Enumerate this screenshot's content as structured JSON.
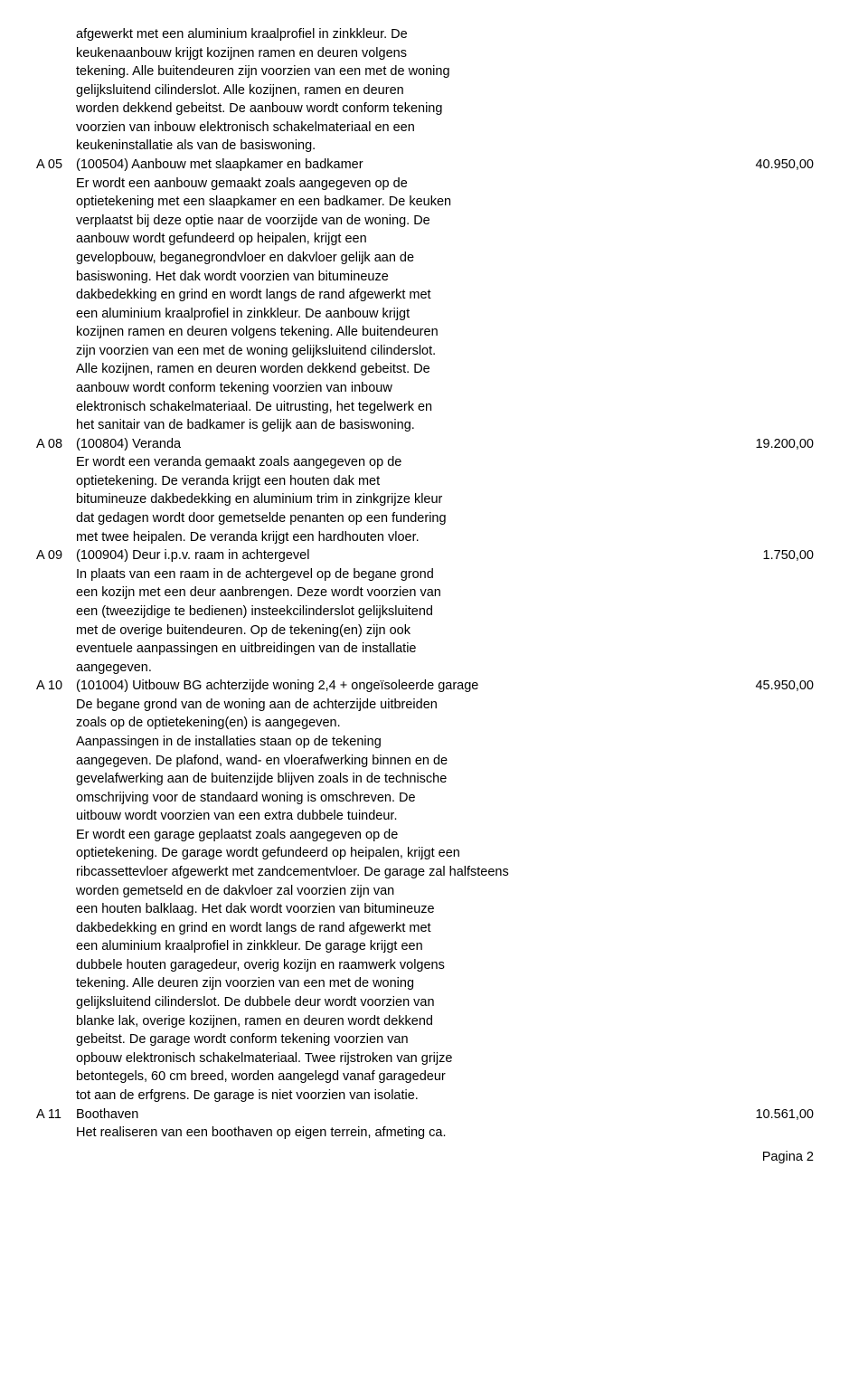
{
  "continuation": {
    "lines": [
      "afgewerkt met een aluminium kraalprofiel in zinkkleur. De",
      "keukenaanbouw krijgt kozijnen ramen en deuren volgens",
      "tekening. Alle buitendeuren zijn voorzien van een met de woning",
      "gelijksluitend cilinderslot. Alle kozijnen, ramen en deuren",
      "worden dekkend gebeitst. De aanbouw wordt conform tekening",
      "voorzien van inbouw elektronisch schakelmateriaal en een",
      "keukeninstallatie als van de basiswoning."
    ]
  },
  "entries": [
    {
      "code": "A 05",
      "title": "(100504) Aanbouw met slaapkamer en badkamer",
      "price": "40.950,00",
      "desc": [
        "Er wordt een aanbouw gemaakt zoals aangegeven op de",
        "optietekening met een slaapkamer en een badkamer. De keuken",
        "verplaatst bij deze optie naar de voorzijde van de woning. De",
        "aanbouw wordt gefundeerd op heipalen, krijgt een",
        "gevelopbouw, beganegrondvloer en dakvloer gelijk aan de",
        "basiswoning. Het dak wordt voorzien van bitumineuze",
        "dakbedekking en grind en wordt langs de rand afgewerkt met",
        "een aluminium kraalprofiel in zinkkleur. De aanbouw krijgt",
        "kozijnen ramen en deuren volgens tekening. Alle buitendeuren",
        "zijn voorzien van een met de woning gelijksluitend cilinderslot.",
        "Alle kozijnen, ramen en deuren worden dekkend gebeitst. De",
        "aanbouw wordt conform tekening voorzien van inbouw",
        "elektronisch schakelmateriaal. De uitrusting, het tegelwerk en",
        "het sanitair van de badkamer is gelijk aan de basiswoning."
      ]
    },
    {
      "code": "A 08",
      "title": "(100804) Veranda",
      "price": "19.200,00",
      "desc": [
        "Er wordt een veranda gemaakt zoals aangegeven op de",
        "optietekening. De veranda krijgt een houten dak met",
        "bitumineuze dakbedekking en aluminium trim in zinkgrijze kleur",
        "dat gedagen wordt door gemetselde penanten op een fundering",
        "met twee heipalen. De veranda krijgt een hardhouten vloer."
      ]
    },
    {
      "code": "A 09",
      "title": "(100904) Deur i.p.v. raam in achtergevel",
      "price": "1.750,00",
      "desc": [
        "In plaats van een raam in de achtergevel op de begane grond",
        "een kozijn met een deur aanbrengen. Deze wordt voorzien van",
        "een (tweezijdige te bedienen) insteekcilinderslot gelijksluitend",
        "met de overige buitendeuren. Op de tekening(en) zijn ook",
        "eventuele aanpassingen en uitbreidingen van de installatie",
        "aangegeven."
      ]
    },
    {
      "code": "A 10",
      "title": "(101004) Uitbouw BG achterzijde woning 2,4 + ongeïsoleerde garage",
      "price": "45.950,00",
      "desc": [
        "De begane grond van de woning aan de achterzijde uitbreiden",
        "zoals op de optietekening(en) is aangegeven.",
        "Aanpassingen in de installaties staan op de tekening",
        "aangegeven. De plafond, wand- en vloerafwerking binnen en de",
        "gevelafwerking aan de buitenzijde blijven zoals in de technische",
        "omschrijving voor de standaard woning is omschreven. De",
        "uitbouw wordt voorzien van een extra dubbele tuindeur.",
        "Er wordt een garage geplaatst zoals aangegeven op de",
        "optietekening. De garage wordt gefundeerd op heipalen, krijgt een",
        "ribcassettevloer afgewerkt met zandcementvloer. De garage zal halfsteens",
        "worden gemetseld en de dakvloer zal voorzien zijn van",
        "een houten balklaag. Het dak wordt voorzien van bitumineuze",
        "dakbedekking en grind en wordt langs de rand afgewerkt met",
        "een aluminium kraalprofiel in zinkkleur. De garage krijgt een",
        "dubbele houten garagedeur, overig kozijn en raamwerk volgens",
        "tekening. Alle deuren zijn voorzien van een met de woning",
        "gelijksluitend cilinderslot. De dubbele deur wordt voorzien van",
        "blanke lak, overige kozijnen, ramen en deuren wordt dekkend",
        "gebeitst. De garage wordt conform tekening  voorzien van",
        "opbouw elektronisch schakelmateriaal. Twee rijstroken van grijze",
        "betontegels, 60 cm breed, worden aangelegd vanaf garagedeur",
        "tot aan de erfgrens. De garage is niet voorzien van isolatie."
      ]
    },
    {
      "code": "A 11",
      "title": "Boothaven",
      "price": "10.561,00",
      "desc": [
        "Het realiseren van een boothaven op eigen terrein, afmeting ca."
      ]
    }
  ],
  "footer": "Pagina 2"
}
